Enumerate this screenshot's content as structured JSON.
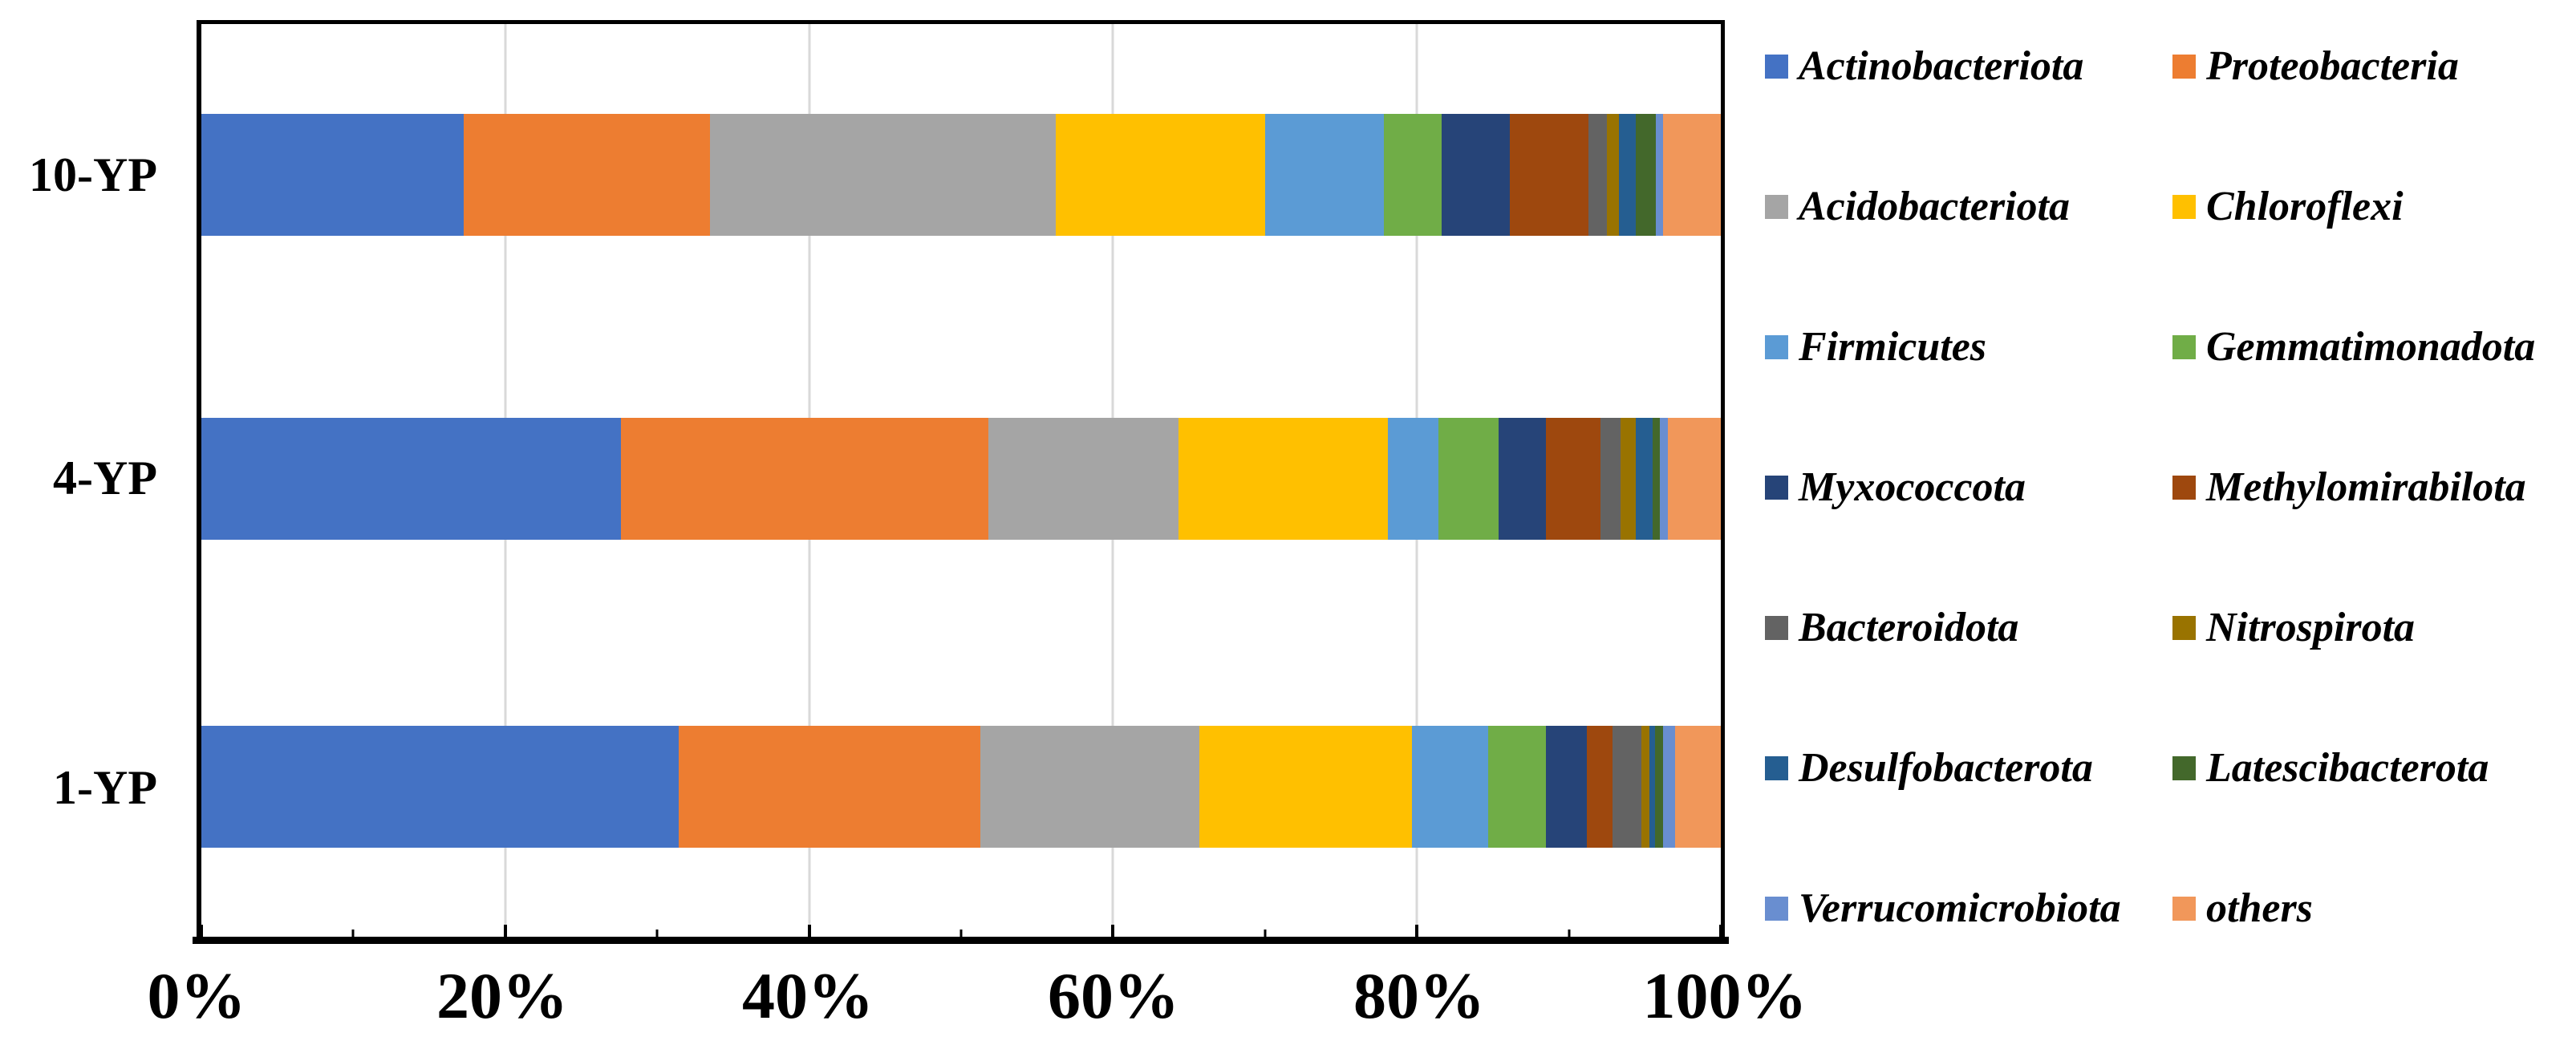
{
  "chart_data": {
    "type": "bar",
    "orientation": "horizontal",
    "stacked": true,
    "title": "",
    "xlabel": "",
    "ylabel": "",
    "xlim": [
      0,
      100
    ],
    "grid": true,
    "legend_position": "right",
    "categories": [
      "10-YP",
      "4-YP",
      "1-YP"
    ],
    "series": [
      {
        "name": "Actinobacteriota",
        "color": "#4472C4",
        "values": [
          17.3,
          27.6,
          31.4
        ]
      },
      {
        "name": "Proteobacteria",
        "color": "#ED7D31",
        "values": [
          16.2,
          24.2,
          19.8
        ]
      },
      {
        "name": "Acidobacteriota",
        "color": "#A5A5A5",
        "values": [
          22.8,
          12.5,
          14.4
        ]
      },
      {
        "name": "Chloroflexi",
        "color": "#FFC000",
        "values": [
          13.8,
          13.8,
          14.0
        ]
      },
      {
        "name": "Firmicutes",
        "color": "#5B9BD5",
        "values": [
          7.8,
          3.3,
          5.0
        ]
      },
      {
        "name": "Gemmatimonadota",
        "color": "#70AD47",
        "values": [
          3.8,
          4.0,
          3.8
        ]
      },
      {
        "name": "Myxococcota",
        "color": "#264478",
        "values": [
          4.5,
          3.1,
          2.7
        ]
      },
      {
        "name": "Methylomirabilota",
        "color": "#9E480E",
        "values": [
          5.2,
          3.6,
          1.7
        ]
      },
      {
        "name": "Bacteroidota",
        "color": "#636363",
        "values": [
          1.2,
          1.3,
          1.9
        ]
      },
      {
        "name": "Nitrospirota",
        "color": "#997300",
        "values": [
          0.8,
          1.0,
          0.5
        ]
      },
      {
        "name": "Desulfobacterota",
        "color": "#255E91",
        "values": [
          1.1,
          1.1,
          0.4
        ]
      },
      {
        "name": "Latescibacterota",
        "color": "#43682B",
        "values": [
          1.3,
          0.5,
          0.5
        ]
      },
      {
        "name": "Verrucomicrobiota",
        "color": "#698ED0",
        "values": [
          0.5,
          0.5,
          0.8
        ]
      },
      {
        "name": "others",
        "color": "#F1975A",
        "values": [
          3.8,
          3.5,
          3.0
        ]
      }
    ]
  },
  "x_axis": {
    "tick_labels": [
      "0%",
      "20%",
      "40%",
      "60%",
      "80%",
      "100%"
    ],
    "tick_positions": [
      0,
      20,
      40,
      60,
      80,
      100
    ],
    "minor_tick_positions": [
      10,
      30,
      50,
      70,
      90
    ],
    "gridline_positions": [
      20,
      40,
      60,
      80
    ]
  },
  "y_axis": {
    "labels": [
      "10-YP",
      "4-YP",
      "1-YP"
    ]
  },
  "colors": {
    "gridline": "#D9D9D9",
    "axis": "#000000",
    "background": "#FFFFFF"
  }
}
